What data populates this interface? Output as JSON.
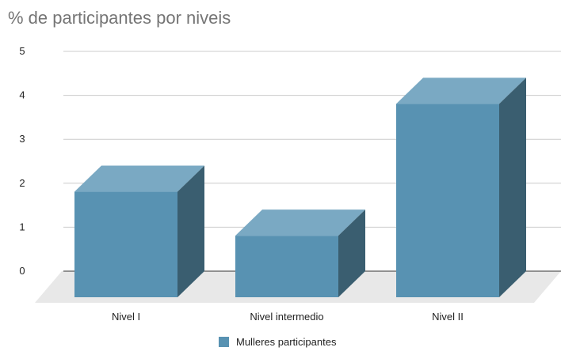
{
  "chart_data": {
    "type": "bar",
    "variant": "3d",
    "title": "% de participantes por niveis",
    "categories": [
      "Nivel I",
      "Nivel intermedio",
      "Nivel II"
    ],
    "series": [
      {
        "name": "Mulleres participantes",
        "values": [
          2.4,
          1.4,
          4.4
        ]
      }
    ],
    "xlabel": "",
    "ylabel": "",
    "ylim": [
      0,
      5
    ],
    "yticks": [
      0,
      1,
      2,
      3,
      4,
      5
    ],
    "grid": true,
    "legend": "bottom"
  },
  "colors": {
    "bar_front": "#5892b2",
    "bar_top": "#7aa9c3",
    "bar_side": "#3a5e70",
    "floor": "#e8e8e8",
    "gridline": "#cccccc",
    "axis_text": "#222222",
    "title_text": "#757575"
  }
}
